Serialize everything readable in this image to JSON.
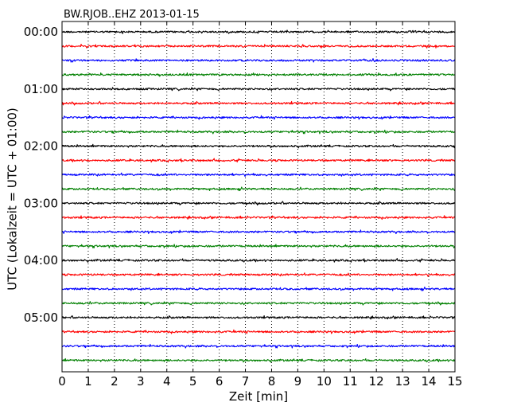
{
  "chart_data": {
    "type": "line",
    "title": "BW.RJOB..EHZ 2013-01-15",
    "xlabel": "Zeit  [min]",
    "ylabel": "UTC (Lokalzeit = UTC + 01:00)",
    "xlim": [
      0,
      15
    ],
    "x_ticks": [
      "0",
      "1",
      "2",
      "3",
      "4",
      "5",
      "6",
      "7",
      "8",
      "9",
      "10",
      "11",
      "12",
      "13",
      "14",
      "15"
    ],
    "y_ticks": [
      "00:00",
      "01:00",
      "02:00",
      "03:00",
      "04:00",
      "05:00"
    ],
    "x_grid": true,
    "trace_interval_minutes": 15,
    "trace_count": 24,
    "trace_colors": [
      "#000000",
      "#ff0000",
      "#0000ff",
      "#008000"
    ],
    "series": [
      {
        "start": "00:00",
        "color": "#000000"
      },
      {
        "start": "00:15",
        "color": "#ff0000"
      },
      {
        "start": "00:30",
        "color": "#0000ff"
      },
      {
        "start": "00:45",
        "color": "#008000"
      },
      {
        "start": "01:00",
        "color": "#000000"
      },
      {
        "start": "01:15",
        "color": "#ff0000"
      },
      {
        "start": "01:30",
        "color": "#0000ff"
      },
      {
        "start": "01:45",
        "color": "#008000"
      },
      {
        "start": "02:00",
        "color": "#000000"
      },
      {
        "start": "02:15",
        "color": "#ff0000"
      },
      {
        "start": "02:30",
        "color": "#0000ff"
      },
      {
        "start": "02:45",
        "color": "#008000"
      },
      {
        "start": "03:00",
        "color": "#000000"
      },
      {
        "start": "03:15",
        "color": "#ff0000"
      },
      {
        "start": "03:30",
        "color": "#0000ff"
      },
      {
        "start": "03:45",
        "color": "#008000"
      },
      {
        "start": "04:00",
        "color": "#000000"
      },
      {
        "start": "04:15",
        "color": "#ff0000"
      },
      {
        "start": "04:30",
        "color": "#0000ff"
      },
      {
        "start": "04:45",
        "color": "#008000"
      },
      {
        "start": "05:00",
        "color": "#000000"
      },
      {
        "start": "05:15",
        "color": "#ff0000"
      },
      {
        "start": "05:30",
        "color": "#0000ff"
      },
      {
        "start": "05:45",
        "color": "#008000"
      }
    ]
  }
}
